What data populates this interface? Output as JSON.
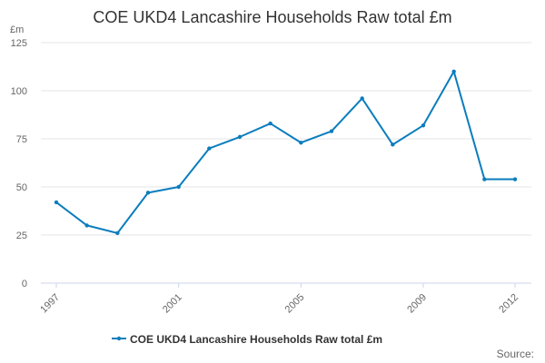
{
  "chart_data": {
    "type": "line",
    "title": "COE UKD4 Lancashire Households Raw total £m",
    "ylabel": "£m",
    "xlabel": "",
    "ylim": [
      0,
      125
    ],
    "y_ticks": [
      "0",
      "25",
      "50",
      "75",
      "100",
      "125"
    ],
    "x_tick_labels": [
      "1997",
      "2001",
      "2005",
      "2009",
      "2012"
    ],
    "x": [
      1997,
      1998,
      1999,
      2000,
      2001,
      2002,
      2003,
      2004,
      2005,
      2006,
      2007,
      2008,
      2009,
      2010,
      2011,
      2012
    ],
    "series": [
      {
        "name": "COE UKD4 Lancashire Households Raw total £m",
        "values": [
          42,
          30,
          26,
          47,
          50,
          70,
          76,
          83,
          73,
          79,
          96,
          72,
          82,
          110,
          54,
          54
        ],
        "color": "#0b7dbd"
      }
    ],
    "legend_position": "bottom-center",
    "source_label": "Source:"
  }
}
